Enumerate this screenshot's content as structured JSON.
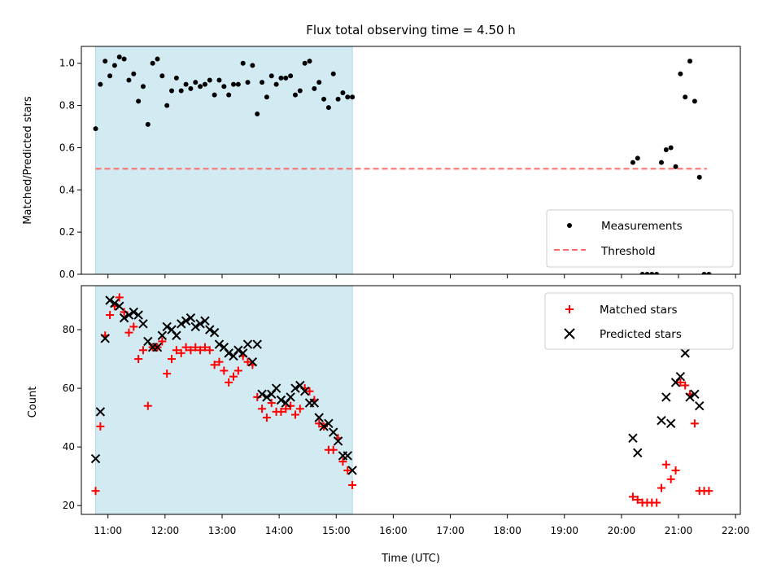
{
  "colors": {
    "observing_window": "#add8e6",
    "measurements": "#000000",
    "threshold": "#ff6b6b",
    "matched": "#ff0000",
    "predicted": "#000000"
  },
  "chart_data": [
    {
      "type": "scatter",
      "title": "Flux total observing time = 4.50 h",
      "xlabel": "",
      "ylabel": "Matched/Predicted stars",
      "ylim": [
        0,
        1.08
      ],
      "yticks": [
        "0.0",
        "0.2",
        "0.4",
        "0.6",
        "0.8",
        "1.0"
      ],
      "ytick_values": [
        0,
        0.2,
        0.4,
        0.6,
        0.8,
        1.0
      ],
      "xlim": [
        "10:32",
        "22:05"
      ],
      "xtick_values": [
        "11:00",
        "12:00",
        "13:00",
        "14:00",
        "15:00",
        "16:00",
        "17:00",
        "18:00",
        "19:00",
        "20:00",
        "21:00",
        "22:00"
      ],
      "xtick_labels_shown": false,
      "shaded_span": [
        "10:47",
        "15:17"
      ],
      "legend_position": "lower right",
      "threshold": {
        "name": "Threshold",
        "y": 0.5,
        "x_range": [
          "10:47",
          "21:30"
        ],
        "style": "dashed"
      },
      "series": [
        {
          "name": "Measurements",
          "marker": "dot",
          "points": [
            [
              "10:47",
              0.69
            ],
            [
              "10:52",
              0.9
            ],
            [
              "10:57",
              1.01
            ],
            [
              "11:02",
              0.94
            ],
            [
              "11:07",
              0.99
            ],
            [
              "11:12",
              1.03
            ],
            [
              "11:17",
              1.02
            ],
            [
              "11:22",
              0.92
            ],
            [
              "11:27",
              0.95
            ],
            [
              "11:32",
              0.82
            ],
            [
              "11:37",
              0.89
            ],
            [
              "11:42",
              0.71
            ],
            [
              "11:47",
              1.0
            ],
            [
              "11:52",
              1.02
            ],
            [
              "11:57",
              0.94
            ],
            [
              "12:02",
              0.8
            ],
            [
              "12:07",
              0.87
            ],
            [
              "12:12",
              0.93
            ],
            [
              "12:17",
              0.87
            ],
            [
              "12:22",
              0.9
            ],
            [
              "12:27",
              0.88
            ],
            [
              "12:32",
              0.91
            ],
            [
              "12:37",
              0.89
            ],
            [
              "12:42",
              0.9
            ],
            [
              "12:47",
              0.92
            ],
            [
              "12:52",
              0.85
            ],
            [
              "12:57",
              0.92
            ],
            [
              "13:02",
              0.89
            ],
            [
              "13:07",
              0.85
            ],
            [
              "13:12",
              0.9
            ],
            [
              "13:17",
              0.9
            ],
            [
              "13:22",
              1.0
            ],
            [
              "13:27",
              0.91
            ],
            [
              "13:32",
              0.99
            ],
            [
              "13:37",
              0.76
            ],
            [
              "13:42",
              0.91
            ],
            [
              "13:47",
              0.84
            ],
            [
              "13:52",
              0.94
            ],
            [
              "13:57",
              0.9
            ],
            [
              "14:02",
              0.93
            ],
            [
              "14:07",
              0.93
            ],
            [
              "14:12",
              0.94
            ],
            [
              "14:17",
              0.85
            ],
            [
              "14:22",
              0.87
            ],
            [
              "14:27",
              1.0
            ],
            [
              "14:32",
              1.01
            ],
            [
              "14:37",
              0.88
            ],
            [
              "14:42",
              0.91
            ],
            [
              "14:47",
              0.83
            ],
            [
              "14:52",
              0.79
            ],
            [
              "14:57",
              0.95
            ],
            [
              "15:02",
              0.83
            ],
            [
              "15:07",
              0.86
            ],
            [
              "15:12",
              0.84
            ],
            [
              "15:17",
              0.84
            ],
            [
              "20:12",
              0.53
            ],
            [
              "20:17",
              0.55
            ],
            [
              "20:22",
              0.0
            ],
            [
              "20:27",
              0.0
            ],
            [
              "20:32",
              0.0
            ],
            [
              "20:37",
              0.0
            ],
            [
              "20:42",
              0.53
            ],
            [
              "20:47",
              0.59
            ],
            [
              "20:52",
              0.6
            ],
            [
              "20:57",
              0.51
            ],
            [
              "21:02",
              0.95
            ],
            [
              "21:07",
              0.84
            ],
            [
              "21:12",
              1.01
            ],
            [
              "21:17",
              0.82
            ],
            [
              "21:22",
              0.46
            ],
            [
              "21:27",
              0.0
            ],
            [
              "21:32",
              0.0
            ]
          ]
        }
      ]
    },
    {
      "type": "scatter",
      "title": "",
      "xlabel": "Time (UTC)",
      "ylabel": "Count",
      "ylim": [
        17,
        95
      ],
      "yticks": [
        "20",
        "40",
        "60",
        "80"
      ],
      "ytick_values": [
        20,
        40,
        60,
        80
      ],
      "xlim": [
        "10:32",
        "22:05"
      ],
      "xticks": [
        "11:00",
        "12:00",
        "13:00",
        "14:00",
        "15:00",
        "16:00",
        "17:00",
        "18:00",
        "19:00",
        "20:00",
        "21:00",
        "22:00"
      ],
      "shaded_span": [
        "10:47",
        "15:17"
      ],
      "legend_position": "upper right",
      "series": [
        {
          "name": "Matched stars",
          "marker": "plus",
          "points": [
            [
              "10:47",
              25
            ],
            [
              "10:52",
              47
            ],
            [
              "10:57",
              78
            ],
            [
              "11:02",
              85
            ],
            [
              "11:07",
              88
            ],
            [
              "11:12",
              91
            ],
            [
              "11:17",
              86
            ],
            [
              "11:22",
              79
            ],
            [
              "11:27",
              81
            ],
            [
              "11:32",
              70
            ],
            [
              "11:37",
              73
            ],
            [
              "11:42",
              54
            ],
            [
              "11:47",
              74
            ],
            [
              "11:52",
              74
            ],
            [
              "11:57",
              76
            ],
            [
              "12:02",
              65
            ],
            [
              "12:07",
              70
            ],
            [
              "12:12",
              73
            ],
            [
              "12:17",
              72
            ],
            [
              "12:22",
              74
            ],
            [
              "12:27",
              73
            ],
            [
              "12:32",
              74
            ],
            [
              "12:37",
              73
            ],
            [
              "12:42",
              74
            ],
            [
              "12:47",
              73
            ],
            [
              "12:52",
              68
            ],
            [
              "12:57",
              69
            ],
            [
              "13:02",
              66
            ],
            [
              "13:07",
              62
            ],
            [
              "13:12",
              64
            ],
            [
              "13:17",
              66
            ],
            [
              "13:22",
              71
            ],
            [
              "13:27",
              69
            ],
            [
              "13:32",
              68
            ],
            [
              "13:37",
              57
            ],
            [
              "13:42",
              53
            ],
            [
              "13:47",
              50
            ],
            [
              "13:52",
              55
            ],
            [
              "13:57",
              52
            ],
            [
              "14:02",
              52
            ],
            [
              "14:07",
              53
            ],
            [
              "14:12",
              54
            ],
            [
              "14:17",
              51
            ],
            [
              "14:22",
              53
            ],
            [
              "14:27",
              60
            ],
            [
              "14:32",
              59
            ],
            [
              "14:37",
              56
            ],
            [
              "14:42",
              48
            ],
            [
              "14:47",
              47
            ],
            [
              "14:52",
              39
            ],
            [
              "14:57",
              39
            ],
            [
              "15:02",
              43
            ],
            [
              "15:07",
              35
            ],
            [
              "15:12",
              32
            ],
            [
              "15:17",
              27
            ],
            [
              "20:12",
              23
            ],
            [
              "20:17",
              22
            ],
            [
              "20:22",
              21
            ],
            [
              "20:27",
              21
            ],
            [
              "20:32",
              21
            ],
            [
              "20:37",
              21
            ],
            [
              "20:42",
              26
            ],
            [
              "20:47",
              34
            ],
            [
              "20:52",
              29
            ],
            [
              "20:57",
              32
            ],
            [
              "21:02",
              62
            ],
            [
              "21:07",
              61
            ],
            [
              "21:12",
              58
            ],
            [
              "21:17",
              48
            ],
            [
              "21:22",
              25
            ],
            [
              "21:27",
              25
            ],
            [
              "21:32",
              25
            ]
          ]
        },
        {
          "name": "Predicted stars",
          "marker": "x",
          "points": [
            [
              "10:47",
              36
            ],
            [
              "10:52",
              52
            ],
            [
              "10:57",
              77
            ],
            [
              "11:02",
              90
            ],
            [
              "11:07",
              89
            ],
            [
              "11:12",
              88
            ],
            [
              "11:17",
              84
            ],
            [
              "11:22",
              85
            ],
            [
              "11:27",
              86
            ],
            [
              "11:32",
              85
            ],
            [
              "11:37",
              82
            ],
            [
              "11:42",
              76
            ],
            [
              "11:47",
              74
            ],
            [
              "11:52",
              74
            ],
            [
              "11:57",
              78
            ],
            [
              "12:02",
              81
            ],
            [
              "12:07",
              80
            ],
            [
              "12:12",
              78
            ],
            [
              "12:17",
              82
            ],
            [
              "12:22",
              83
            ],
            [
              "12:27",
              84
            ],
            [
              "12:32",
              81
            ],
            [
              "12:37",
              82
            ],
            [
              "12:42",
              83
            ],
            [
              "12:47",
              80
            ],
            [
              "12:52",
              79
            ],
            [
              "12:57",
              75
            ],
            [
              "13:02",
              74
            ],
            [
              "13:07",
              72
            ],
            [
              "13:12",
              71
            ],
            [
              "13:17",
              73
            ],
            [
              "13:22",
              72
            ],
            [
              "13:27",
              75
            ],
            [
              "13:32",
              69
            ],
            [
              "13:37",
              75
            ],
            [
              "13:42",
              58
            ],
            [
              "13:47",
              57
            ],
            [
              "13:52",
              58
            ],
            [
              "13:57",
              60
            ],
            [
              "14:02",
              56
            ],
            [
              "14:07",
              55
            ],
            [
              "14:12",
              57
            ],
            [
              "14:17",
              60
            ],
            [
              "14:22",
              61
            ],
            [
              "14:27",
              59
            ],
            [
              "14:32",
              55
            ],
            [
              "14:37",
              55
            ],
            [
              "14:42",
              50
            ],
            [
              "14:47",
              47
            ],
            [
              "14:52",
              48
            ],
            [
              "14:57",
              45
            ],
            [
              "15:02",
              42
            ],
            [
              "15:07",
              37
            ],
            [
              "15:12",
              37
            ],
            [
              "15:17",
              32
            ],
            [
              "20:12",
              43
            ],
            [
              "20:17",
              38
            ],
            [
              "20:42",
              49
            ],
            [
              "20:47",
              57
            ],
            [
              "20:52",
              48
            ],
            [
              "20:57",
              62
            ],
            [
              "21:02",
              64
            ],
            [
              "21:07",
              72
            ],
            [
              "21:12",
              57
            ],
            [
              "21:17",
              58
            ],
            [
              "21:22",
              54
            ]
          ]
        }
      ]
    }
  ]
}
